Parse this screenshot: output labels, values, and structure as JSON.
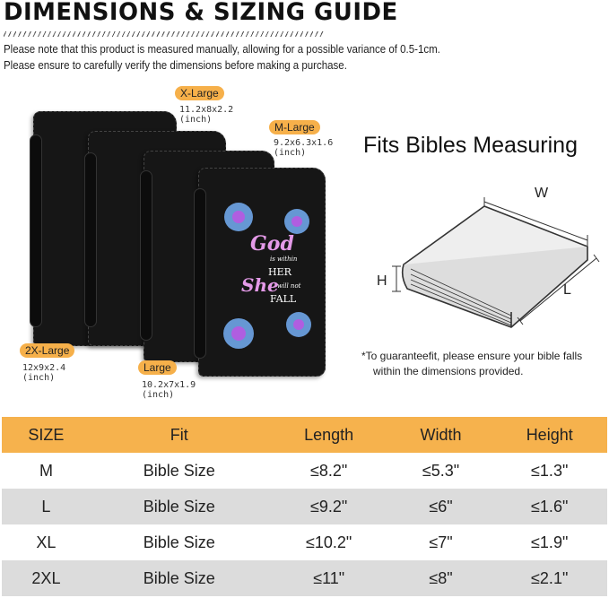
{
  "title": "DIMENSIONS & SIZING GUIDE",
  "notes": [
    "Please note that this product is measured manually, allowing for a possible variance of 0.5-1cm.",
    "Please ensure to carefully verify the dimensions before making a purchase."
  ],
  "sizes": [
    {
      "label": "X-Large",
      "dims": "11.2x8x2.2",
      "unit": "(inch)"
    },
    {
      "label": "M-Large",
      "dims": "9.2x6.3x1.6",
      "unit": "(inch)"
    },
    {
      "label": "2X-Large",
      "dims": "12x9x2.4",
      "unit": "(inch)"
    },
    {
      "label": "Large",
      "dims": "10.2x7x1.9",
      "unit": "(inch)"
    }
  ],
  "cover_text": {
    "l1": "God",
    "l2": "is within",
    "l3": "HER",
    "l4": "She",
    "l5": "will not",
    "l6": "FALL"
  },
  "fits_title": "Fits Bibles Measuring",
  "diagram": {
    "w": "W",
    "h": "H",
    "l": "L"
  },
  "guarantee": [
    "*To guaranteefit, please ensure your bible falls",
    "within the dimensions provided."
  ],
  "colors": {
    "accent": "#f6b24d",
    "row_alt": "#dcdcdc"
  },
  "table": {
    "headers": [
      "SIZE",
      "Fit",
      "Length",
      "Width",
      "Height"
    ],
    "rows": [
      [
        "M",
        "Bible Size",
        "≤8.2\"",
        "≤5.3\"",
        "≤1.3\""
      ],
      [
        "L",
        "Bible Size",
        "≤9.2\"",
        "≤6\"",
        "≤1.6\""
      ],
      [
        "XL",
        "Bible Size",
        "≤10.2\"",
        "≤7\"",
        "≤1.9\""
      ],
      [
        "2XL",
        "Bible Size",
        "≤11\"",
        "≤8\"",
        "≤2.1\""
      ]
    ]
  }
}
